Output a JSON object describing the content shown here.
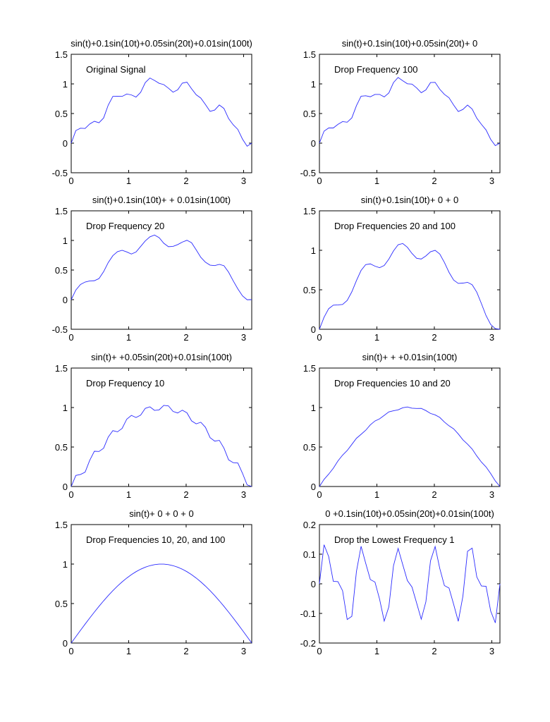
{
  "chart_data": [
    {
      "type": "line",
      "title": "sin(t)+0.1sin(10t)+0.05sin(20t)+0.01sin(100t)",
      "annotation": "Original Signal",
      "xlim": [
        0,
        3.1416
      ],
      "ylim": [
        -0.5,
        1.5
      ],
      "xticks": [
        "0",
        "1",
        "2",
        "3"
      ],
      "yticks": [
        "-0.5",
        "0",
        "0.5",
        "1",
        "1.5"
      ],
      "series": [
        {
          "components": [
            [
              1,
              1
            ],
            [
              10,
              0.1
            ],
            [
              20,
              0.05
            ],
            [
              100,
              0.01
            ]
          ]
        }
      ]
    },
    {
      "type": "line",
      "title": "sin(t)+0.1sin(10t)+0.05sin(20t)+   0",
      "annotation": "Drop Frequency 100",
      "xlim": [
        0,
        3.1416
      ],
      "ylim": [
        -0.5,
        1.5
      ],
      "xticks": [
        "0",
        "1",
        "2",
        "3"
      ],
      "yticks": [
        "-0.5",
        "0",
        "0.5",
        "1",
        "1.5"
      ],
      "series": [
        {
          "components": [
            [
              1,
              1
            ],
            [
              10,
              0.1
            ],
            [
              20,
              0.05
            ]
          ]
        }
      ]
    },
    {
      "type": "line",
      "title": "sin(t)+0.1sin(10t)+      + 0.01sin(100t)",
      "annotation": "Drop Frequency 20",
      "xlim": [
        0,
        3.1416
      ],
      "ylim": [
        -0.5,
        1.5
      ],
      "xticks": [
        "0",
        "1",
        "2",
        "3"
      ],
      "yticks": [
        "-0.5",
        "0",
        "0.5",
        "1",
        "1.5"
      ],
      "series": [
        {
          "components": [
            [
              1,
              1
            ],
            [
              10,
              0.1
            ],
            [
              100,
              0.01
            ]
          ]
        }
      ]
    },
    {
      "type": "line",
      "title": "sin(t)+0.1sin(10t)+   0 +  0",
      "annotation": "Drop Frequencies 20 and 100",
      "xlim": [
        0,
        3.1416
      ],
      "ylim": [
        0,
        1.5
      ],
      "xticks": [
        "0",
        "1",
        "2",
        "3"
      ],
      "yticks": [
        "0",
        "0.5",
        "1",
        "1.5"
      ],
      "series": [
        {
          "components": [
            [
              1,
              1
            ],
            [
              10,
              0.1
            ]
          ]
        }
      ]
    },
    {
      "type": "line",
      "title": "sin(t)+      +0.05sin(20t)+0.01sin(100t)",
      "annotation": "Drop Frequency 10",
      "xlim": [
        0,
        3.1416
      ],
      "ylim": [
        0,
        1.5
      ],
      "xticks": [
        "0",
        "1",
        "2",
        "3"
      ],
      "yticks": [
        "0",
        "0.5",
        "1",
        "1.5"
      ],
      "series": [
        {
          "components": [
            [
              1,
              1
            ],
            [
              20,
              0.05
            ],
            [
              100,
              0.01
            ]
          ]
        }
      ]
    },
    {
      "type": "line",
      "title": "sin(t)+      +       +0.01sin(100t)",
      "annotation": "Drop Frequencies 10 and 20",
      "xlim": [
        0,
        3.1416
      ],
      "ylim": [
        0,
        1.5
      ],
      "xticks": [
        "0",
        "1",
        "2",
        "3"
      ],
      "yticks": [
        "0",
        "0.5",
        "1",
        "1.5"
      ],
      "series": [
        {
          "components": [
            [
              1,
              1
            ],
            [
              100,
              0.01
            ]
          ]
        }
      ]
    },
    {
      "type": "line",
      "title": "sin(t)+  0  +  0  +  0",
      "annotation": "Drop Frequencies 10, 20, and 100",
      "xlim": [
        0,
        3.1416
      ],
      "ylim": [
        0,
        1.5
      ],
      "xticks": [
        "0",
        "1",
        "2",
        "3"
      ],
      "yticks": [
        "0",
        "0.5",
        "1",
        "1.5"
      ],
      "series": [
        {
          "components": [
            [
              1,
              1
            ]
          ]
        }
      ]
    },
    {
      "type": "line",
      "title": "0  +0.1sin(10t)+0.05sin(20t)+0.01sin(100t)",
      "annotation": "Drop the Lowest Frequency 1",
      "xlim": [
        0,
        3.1416
      ],
      "ylim": [
        -0.2,
        0.2
      ],
      "xticks": [
        "0",
        "1",
        "2",
        "3"
      ],
      "yticks": [
        "-0.2",
        "-0.1",
        "0",
        "0.1",
        "0.2"
      ],
      "series": [
        {
          "components": [
            [
              10,
              0.1
            ],
            [
              20,
              0.05
            ],
            [
              100,
              0.01
            ]
          ]
        }
      ]
    }
  ]
}
